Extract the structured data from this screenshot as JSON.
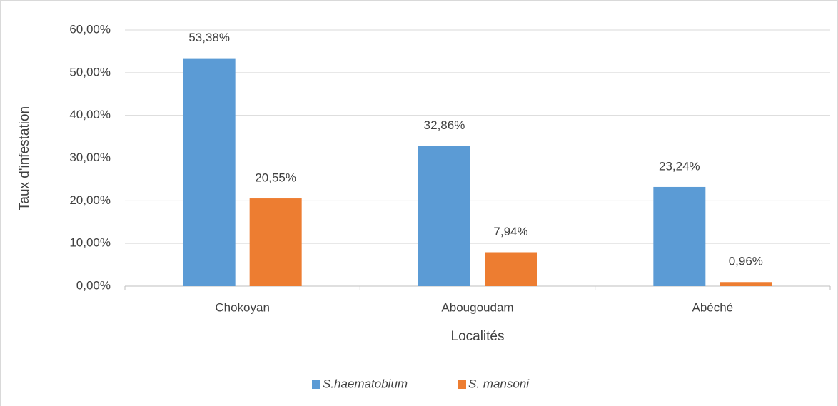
{
  "chart_data": {
    "type": "bar",
    "categories": [
      "Chokoyan",
      "Abougoudam",
      "Abéché"
    ],
    "series": [
      {
        "name": "S.haematobium",
        "color": "#5b9bd5",
        "values": [
          53.38,
          32.86,
          23.24
        ],
        "value_labels": [
          "53,38%",
          "32,86%",
          "23,24%"
        ]
      },
      {
        "name": "S. mansoni",
        "color": "#ed7d31",
        "values": [
          20.55,
          7.94,
          0.96
        ],
        "value_labels": [
          "20,55%",
          "7,94%",
          "0,96%"
        ]
      }
    ],
    "x_label": "Localités",
    "y_label": "Taux d'infestation",
    "ylim": [
      0,
      60
    ],
    "yticks": [
      {
        "value": 0,
        "label": "0,00%"
      },
      {
        "value": 10,
        "label": "10,00%"
      },
      {
        "value": 20,
        "label": "20,00%"
      },
      {
        "value": 30,
        "label": "30,00%"
      },
      {
        "value": 40,
        "label": "40,00%"
      },
      {
        "value": 50,
        "label": "50,00%"
      },
      {
        "value": 60,
        "label": "60,00%"
      }
    ],
    "grid": true,
    "legend": "bottom"
  }
}
